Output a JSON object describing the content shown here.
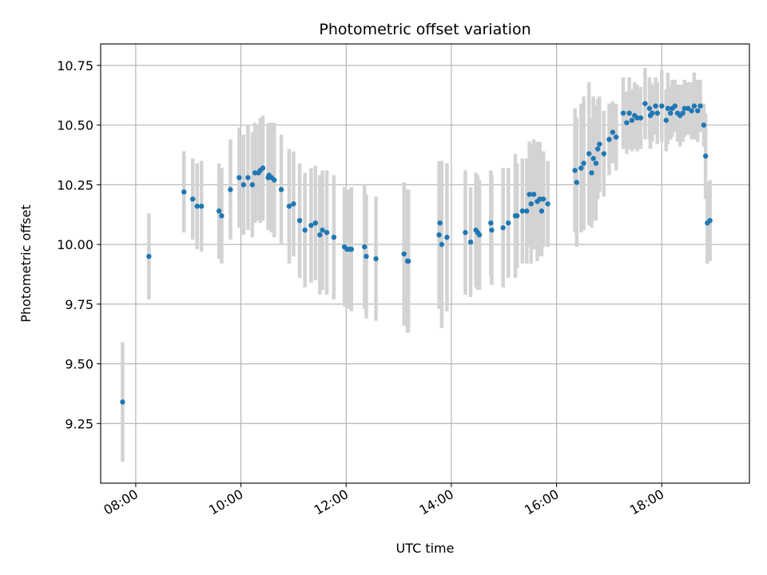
{
  "chart_data": {
    "type": "scatter",
    "title": "Photometric offset variation",
    "xlabel": "UTC time",
    "ylabel": "Photometric offset",
    "x_tick_labels": [
      "08:00",
      "10:00",
      "12:00",
      "14:00",
      "16:00",
      "18:00"
    ],
    "y_tick_labels": [
      "9.25",
      "9.50",
      "9.75",
      "10.00",
      "10.25",
      "10.50",
      "10.75"
    ],
    "xlim": [
      "07:20",
      "19:40"
    ],
    "ylim": [
      9.0,
      10.84
    ],
    "grid": true,
    "legend": "none",
    "colors": {
      "marker": "#1f77b4",
      "errorbar": "#d3d3d3",
      "grid": "#b0b0b0"
    },
    "series": [
      {
        "x": [
          "07:45",
          "08:15",
          "08:55",
          "09:05",
          "09:10",
          "09:15",
          "09:35",
          "09:38",
          "09:48",
          "09:58",
          "10:03",
          "10:08",
          "10:13",
          "10:16",
          "10:20",
          "10:22",
          "10:25",
          "10:31",
          "10:32",
          "10:35",
          "10:38",
          "10:46",
          "10:55",
          "11:00",
          "11:07",
          "11:13",
          "11:20",
          "11:25",
          "11:30",
          "11:33",
          "11:38",
          "11:46",
          "11:58",
          "12:01",
          "12:04",
          "12:06",
          "12:21",
          "12:23",
          "12:34",
          "13:06",
          "13:10",
          "13:11",
          "13:46",
          "13:47",
          "13:49",
          "13:55",
          "14:16",
          "14:22",
          "14:28",
          "14:30",
          "14:32",
          "14:45",
          "14:46",
          "14:59",
          "15:05",
          "15:13",
          "15:15",
          "15:21",
          "15:26",
          "15:29",
          "15:31",
          "15:34",
          "15:38",
          "15:41",
          "15:43",
          "15:45",
          "15:50",
          "16:21",
          "16:23",
          "16:28",
          "16:31",
          "16:37",
          "16:40",
          "16:42",
          "16:45",
          "16:47",
          "16:49",
          "16:54",
          "17:00",
          "17:04",
          "17:08",
          "17:16",
          "17:20",
          "17:23",
          "17:26",
          "17:29",
          "17:32",
          "17:36",
          "17:41",
          "17:46",
          "17:47",
          "17:49",
          "17:53",
          "17:55",
          "18:00",
          "18:05",
          "18:07",
          "18:10",
          "18:12",
          "18:15",
          "18:18",
          "18:21",
          "18:24",
          "18:26",
          "18:30",
          "18:34",
          "18:37",
          "18:41",
          "18:44",
          "18:48",
          "18:50",
          "18:52",
          "18:55"
        ],
        "y": [
          9.34,
          9.95,
          10.22,
          10.19,
          10.16,
          10.16,
          10.14,
          10.12,
          10.23,
          10.28,
          10.25,
          10.28,
          10.25,
          10.3,
          10.3,
          10.31,
          10.32,
          10.28,
          10.29,
          10.28,
          10.27,
          10.23,
          10.16,
          10.17,
          10.1,
          10.06,
          10.08,
          10.09,
          10.04,
          10.06,
          10.05,
          10.03,
          9.99,
          9.98,
          9.98,
          9.98,
          9.99,
          9.95,
          9.94,
          9.96,
          9.93,
          9.93,
          10.04,
          10.09,
          10.0,
          10.03,
          10.05,
          10.01,
          10.06,
          10.05,
          10.04,
          10.09,
          10.06,
          10.07,
          10.09,
          10.12,
          10.12,
          10.14,
          10.14,
          10.21,
          10.17,
          10.21,
          10.18,
          10.19,
          10.14,
          10.19,
          10.17,
          10.31,
          10.26,
          10.32,
          10.34,
          10.38,
          10.3,
          10.36,
          10.34,
          10.4,
          10.42,
          10.38,
          10.44,
          10.47,
          10.45,
          10.55,
          10.51,
          10.55,
          10.52,
          10.54,
          10.53,
          10.53,
          10.59,
          10.57,
          10.54,
          10.55,
          10.58,
          10.55,
          10.58,
          10.52,
          10.57,
          10.55,
          10.57,
          10.58,
          10.55,
          10.54,
          10.55,
          10.57,
          10.57,
          10.56,
          10.58,
          10.56,
          10.58,
          10.5,
          10.37,
          10.09,
          10.1
        ],
        "err": [
          0.25,
          0.18,
          0.17,
          0.17,
          0.18,
          0.19,
          0.2,
          0.2,
          0.21,
          0.21,
          0.21,
          0.22,
          0.22,
          0.21,
          0.2,
          0.22,
          0.22,
          0.22,
          0.22,
          0.23,
          0.24,
          0.23,
          0.24,
          0.22,
          0.24,
          0.24,
          0.24,
          0.24,
          0.25,
          0.25,
          0.26,
          0.26,
          0.25,
          0.25,
          0.25,
          0.26,
          0.26,
          0.26,
          0.26,
          0.3,
          0.3,
          0.3,
          0.31,
          0.26,
          0.35,
          0.31,
          0.26,
          0.23,
          0.24,
          0.24,
          0.23,
          0.22,
          0.23,
          0.25,
          0.23,
          0.26,
          0.22,
          0.22,
          0.22,
          0.22,
          0.25,
          0.23,
          0.25,
          0.24,
          0.19,
          0.2,
          0.18,
          0.26,
          0.27,
          0.27,
          0.28,
          0.3,
          0.23,
          0.26,
          0.24,
          0.21,
          0.2,
          0.18,
          0.15,
          0.13,
          0.14,
          0.15,
          0.13,
          0.15,
          0.13,
          0.14,
          0.14,
          0.13,
          0.15,
          0.13,
          0.14,
          0.12,
          0.12,
          0.13,
          0.15,
          0.13,
          0.15,
          0.11,
          0.12,
          0.11,
          0.12,
          0.13,
          0.12,
          0.12,
          0.11,
          0.12,
          0.14,
          0.13,
          0.11,
          0.09,
          0.18,
          0.17,
          0.17
        ]
      }
    ]
  }
}
